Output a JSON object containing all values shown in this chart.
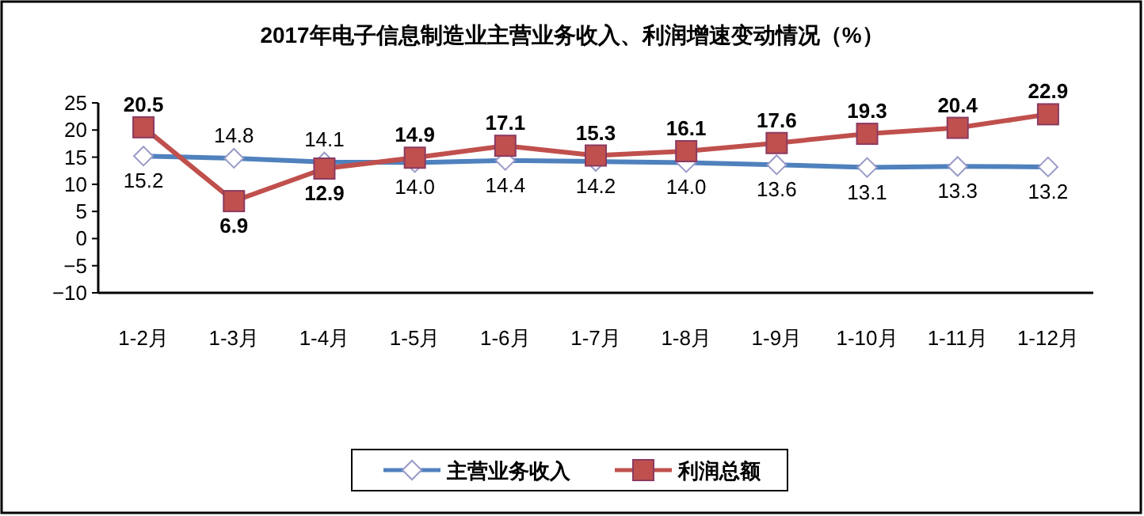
{
  "chart_data": {
    "type": "line",
    "title": "2017年电子信息制造业主营业务收入、利润增速变动情况（%）",
    "categories": [
      "1-2月",
      "1-3月",
      "1-4月",
      "1-5月",
      "1-6月",
      "1-7月",
      "1-8月",
      "1-9月",
      "1-10月",
      "1-11月",
      "1-12月"
    ],
    "series": [
      {
        "name": "主营业务收入",
        "color": "#4f81bd",
        "marker": "diamond",
        "values": [
          15.2,
          14.8,
          14.1,
          14.0,
          14.4,
          14.2,
          14.0,
          13.6,
          13.1,
          13.3,
          13.2
        ],
        "value_labels": [
          "15.2",
          "14.8",
          "14.1",
          "14.0",
          "14.4",
          "14.2",
          "14.0",
          "13.6",
          "13.1",
          "13.3",
          "13.2"
        ]
      },
      {
        "name": "利润总额",
        "color": "#c0504d",
        "marker": "square",
        "values": [
          20.5,
          6.9,
          12.9,
          14.9,
          17.1,
          15.3,
          16.1,
          17.6,
          19.3,
          20.4,
          22.9
        ],
        "value_labels": [
          "20.5",
          "6.9",
          "12.9",
          "14.9",
          "17.1",
          "15.3",
          "16.1",
          "17.6",
          "19.3",
          "20.4",
          "22.9"
        ]
      }
    ],
    "ylim": [
      -10,
      25
    ],
    "yticks": [
      -10,
      -5,
      0,
      5,
      10,
      15,
      20,
      25
    ],
    "legend": "bottom",
    "grid": false
  }
}
